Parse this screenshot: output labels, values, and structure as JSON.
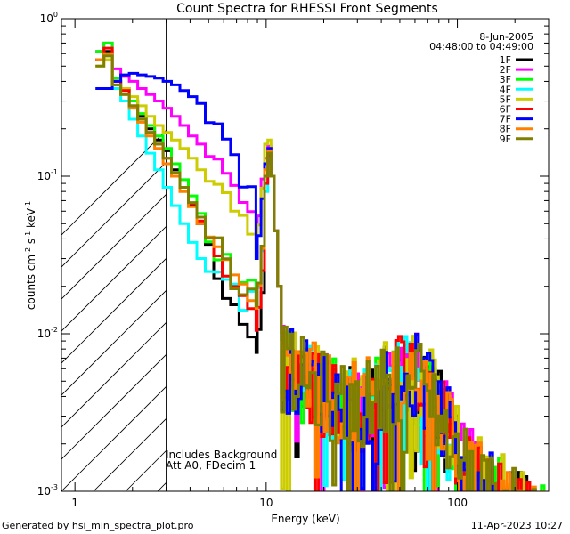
{
  "chart_data": {
    "type": "line",
    "title": "Count Spectra for RHESSI Front Segments",
    "xlabel": "Energy (keV)",
    "ylabel_main": "counts cm",
    "ylabel_exp1": "-2",
    "ylabel_mid": " s",
    "ylabel_exp2": "-1",
    "ylabel_unit": " keV",
    "ylabel_exp3": "-1",
    "x_scale": "log",
    "y_scale": "log",
    "xlim": [
      0.85,
      300
    ],
    "ylim": [
      0.001,
      1.0
    ],
    "x_ticks": [
      {
        "value": 1,
        "label": "1"
      },
      {
        "value": 10,
        "label": "10"
      },
      {
        "value": 100,
        "label": "100"
      }
    ],
    "y_ticks": [
      {
        "value": 0.001,
        "base": "10",
        "exp": "-3"
      },
      {
        "value": 0.01,
        "base": "10",
        "exp": "-2"
      },
      {
        "value": 0.1,
        "base": "10",
        "exp": "-1"
      },
      {
        "value": 1,
        "base": "10",
        "exp": "0"
      }
    ],
    "hatched_region": {
      "x_from": 0.85,
      "x_to": 3.0
    },
    "legend_date": "8-Jun-2005",
    "legend_time": "04:48:00 to 04:49:00",
    "annotation_lines": [
      "Includes Background",
      "Att A0, FDecim 1"
    ],
    "series": [
      {
        "name": "1F",
        "color": "#000000",
        "shift": 0.0,
        "start": [
          0.55,
          0.62,
          0.4,
          0.36,
          0.3,
          0.24,
          0.2,
          0.17,
          0.145,
          0.11,
          0.085,
          0.065,
          0.05,
          0.035,
          0.024,
          0.016,
          0.013,
          0.0108,
          0.009,
          0.0082,
          0.0078,
          0.0076
        ]
      },
      {
        "name": "2F",
        "color": "#ff00ff",
        "shift": 0.03,
        "start": [
          0.62,
          0.7,
          0.48,
          0.43,
          0.4,
          0.36,
          0.33,
          0.3,
          0.27,
          0.24,
          0.21,
          0.18,
          0.16,
          0.14,
          0.12,
          0.1,
          0.085,
          0.072,
          0.061,
          0.052,
          0.045,
          0.04
        ]
      },
      {
        "name": "3F",
        "color": "#00ff00",
        "shift": 0.0,
        "start": [
          0.62,
          0.7,
          0.42,
          0.36,
          0.3,
          0.25,
          0.21,
          0.18,
          0.15,
          0.12,
          0.095,
          0.075,
          0.058,
          0.045,
          0.035,
          0.028,
          0.024,
          0.021,
          0.019,
          0.017,
          0.016,
          0.015
        ]
      },
      {
        "name": "4F",
        "color": "#00ffff",
        "shift": -0.02,
        "start": [
          0.55,
          0.6,
          0.36,
          0.3,
          0.23,
          0.18,
          0.14,
          0.11,
          0.085,
          0.065,
          0.05,
          0.038,
          0.03,
          0.025,
          0.021,
          0.019,
          0.018,
          0.017,
          0.016,
          0.015,
          0.0145,
          0.014
        ]
      },
      {
        "name": "5F",
        "color": "#cccc00",
        "shift": 0.06,
        "start": [
          0.5,
          0.55,
          0.4,
          0.36,
          0.32,
          0.28,
          0.24,
          0.21,
          0.19,
          0.17,
          0.15,
          0.13,
          0.11,
          0.095,
          0.082,
          0.07,
          0.06,
          0.053,
          0.047,
          0.042,
          0.038,
          0.035
        ]
      },
      {
        "name": "6F",
        "color": "#ff0000",
        "shift": -0.01,
        "start": [
          0.55,
          0.65,
          0.4,
          0.35,
          0.28,
          0.23,
          0.19,
          0.16,
          0.13,
          0.105,
          0.085,
          0.067,
          0.052,
          0.04,
          0.031,
          0.024,
          0.019,
          0.016,
          0.014,
          0.012,
          0.011,
          0.0105
        ]
      },
      {
        "name": "7F",
        "color": "#0000ff",
        "shift": 0.02,
        "start": [
          0.36,
          0.36,
          0.4,
          0.44,
          0.45,
          0.44,
          0.43,
          0.42,
          0.4,
          0.38,
          0.35,
          0.32,
          0.29,
          0.25,
          0.21,
          0.17,
          0.13,
          0.1,
          0.075,
          0.055,
          0.04,
          0.03
        ]
      },
      {
        "name": "8F",
        "color": "#ff8000",
        "shift": 0.01,
        "start": [
          0.55,
          0.6,
          0.38,
          0.33,
          0.27,
          0.22,
          0.18,
          0.15,
          0.12,
          0.1,
          0.08,
          0.064,
          0.05,
          0.04,
          0.032,
          0.026,
          0.022,
          0.019,
          0.017,
          0.016,
          0.015,
          0.0145
        ]
      },
      {
        "name": "9F",
        "color": "#808000",
        "shift": 0.0,
        "start": [
          0.5,
          0.58,
          0.38,
          0.33,
          0.28,
          0.23,
          0.19,
          0.16,
          0.13,
          0.105,
          0.085,
          0.068,
          0.055,
          0.044,
          0.035,
          0.028,
          0.023,
          0.02,
          0.018,
          0.017,
          0.016,
          0.015
        ]
      }
    ]
  },
  "footer": {
    "generated_by": "Generated by hsi_min_spectra_plot.pro",
    "datetime": "11-Apr-2023 10:27"
  }
}
